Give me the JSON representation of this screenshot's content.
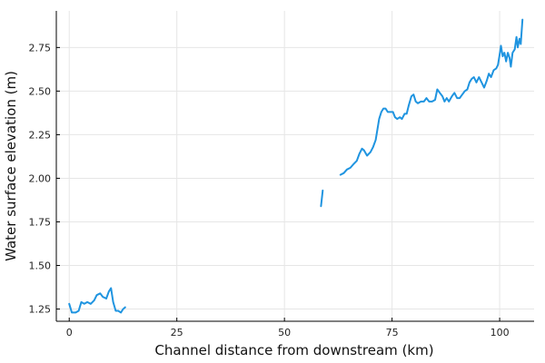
{
  "chart_data": {
    "type": "line",
    "xlabel": "Channel distance from downstream (km)",
    "ylabel": "Water surface elevation (m)",
    "xlim": [
      -3,
      108
    ],
    "ylim": [
      1.18,
      2.96
    ],
    "xticks": [
      0,
      25,
      50,
      75,
      100
    ],
    "yticks": [
      1.25,
      1.5,
      1.75,
      2.0,
      2.25,
      2.5,
      2.75
    ],
    "ytick_labels": [
      "1.25",
      "1.50",
      "1.75",
      "2.00",
      "2.25",
      "2.50",
      "2.75"
    ],
    "grid": true,
    "legend": "none",
    "series": [
      {
        "color": "#1f94e0",
        "segments": [
          [
            [
              0,
              1.28
            ],
            [
              0.6,
              1.23
            ],
            [
              1.5,
              1.23
            ],
            [
              2.2,
              1.24
            ],
            [
              2.8,
              1.29
            ],
            [
              3.5,
              1.28
            ],
            [
              4.2,
              1.29
            ],
            [
              5,
              1.28
            ],
            [
              5.8,
              1.3
            ],
            [
              6.4,
              1.33
            ],
            [
              7.2,
              1.34
            ],
            [
              7.8,
              1.32
            ],
            [
              8.6,
              1.31
            ],
            [
              9.2,
              1.35
            ],
            [
              9.7,
              1.37
            ],
            [
              10.2,
              1.29
            ],
            [
              10.8,
              1.24
            ],
            [
              11.4,
              1.24
            ],
            [
              12,
              1.23
            ],
            [
              12.5,
              1.25
            ],
            [
              13,
              1.26
            ]
          ],
          [
            [
              58.5,
              1.84
            ],
            [
              58.9,
              1.93
            ]
          ],
          [
            [
              63,
              2.02
            ],
            [
              63.8,
              2.03
            ],
            [
              64.5,
              2.05
            ],
            [
              65.3,
              2.06
            ],
            [
              66,
              2.08
            ],
            [
              66.8,
              2.1
            ],
            [
              67.4,
              2.14
            ],
            [
              68,
              2.17
            ],
            [
              68.5,
              2.16
            ],
            [
              69.2,
              2.13
            ],
            [
              70,
              2.15
            ],
            [
              70.6,
              2.18
            ],
            [
              71.2,
              2.22
            ],
            [
              71.6,
              2.28
            ],
            [
              72,
              2.34
            ],
            [
              72.5,
              2.38
            ],
            [
              73,
              2.4
            ],
            [
              73.5,
              2.4
            ],
            [
              74,
              2.38
            ],
            [
              74.6,
              2.38
            ],
            [
              75.2,
              2.38
            ],
            [
              75.7,
              2.35
            ],
            [
              76.2,
              2.34
            ],
            [
              76.8,
              2.35
            ],
            [
              77.3,
              2.34
            ],
            [
              77.9,
              2.37
            ],
            [
              78.4,
              2.37
            ],
            [
              78.9,
              2.42
            ],
            [
              79.5,
              2.47
            ],
            [
              80,
              2.48
            ],
            [
              80.5,
              2.44
            ],
            [
              81,
              2.43
            ],
            [
              81.7,
              2.44
            ],
            [
              82.4,
              2.44
            ],
            [
              83,
              2.46
            ],
            [
              83.6,
              2.44
            ],
            [
              84.3,
              2.44
            ],
            [
              85,
              2.45
            ],
            [
              85.5,
              2.51
            ],
            [
              86.1,
              2.49
            ],
            [
              86.7,
              2.47
            ],
            [
              87.2,
              2.44
            ],
            [
              87.7,
              2.46
            ],
            [
              88.2,
              2.44
            ],
            [
              88.9,
              2.47
            ],
            [
              89.5,
              2.49
            ],
            [
              90.1,
              2.46
            ],
            [
              90.7,
              2.46
            ],
            [
              91.3,
              2.48
            ],
            [
              91.9,
              2.5
            ],
            [
              92.5,
              2.51
            ],
            [
              93,
              2.55
            ],
            [
              93.5,
              2.57
            ],
            [
              94,
              2.58
            ],
            [
              94.6,
              2.55
            ],
            [
              95.2,
              2.58
            ],
            [
              95.8,
              2.55
            ],
            [
              96.4,
              2.52
            ],
            [
              97,
              2.56
            ],
            [
              97.5,
              2.6
            ],
            [
              98,
              2.58
            ],
            [
              98.6,
              2.62
            ],
            [
              99.2,
              2.63
            ],
            [
              99.6,
              2.65
            ],
            [
              100,
              2.71
            ],
            [
              100.3,
              2.76
            ],
            [
              100.7,
              2.7
            ],
            [
              101.1,
              2.72
            ],
            [
              101.5,
              2.67
            ],
            [
              101.9,
              2.72
            ],
            [
              102.3,
              2.69
            ],
            [
              102.6,
              2.64
            ],
            [
              103,
              2.72
            ],
            [
              103.5,
              2.74
            ],
            [
              103.9,
              2.81
            ],
            [
              104.2,
              2.75
            ],
            [
              104.6,
              2.8
            ],
            [
              104.9,
              2.77
            ],
            [
              105.3,
              2.91
            ]
          ]
        ]
      }
    ]
  }
}
